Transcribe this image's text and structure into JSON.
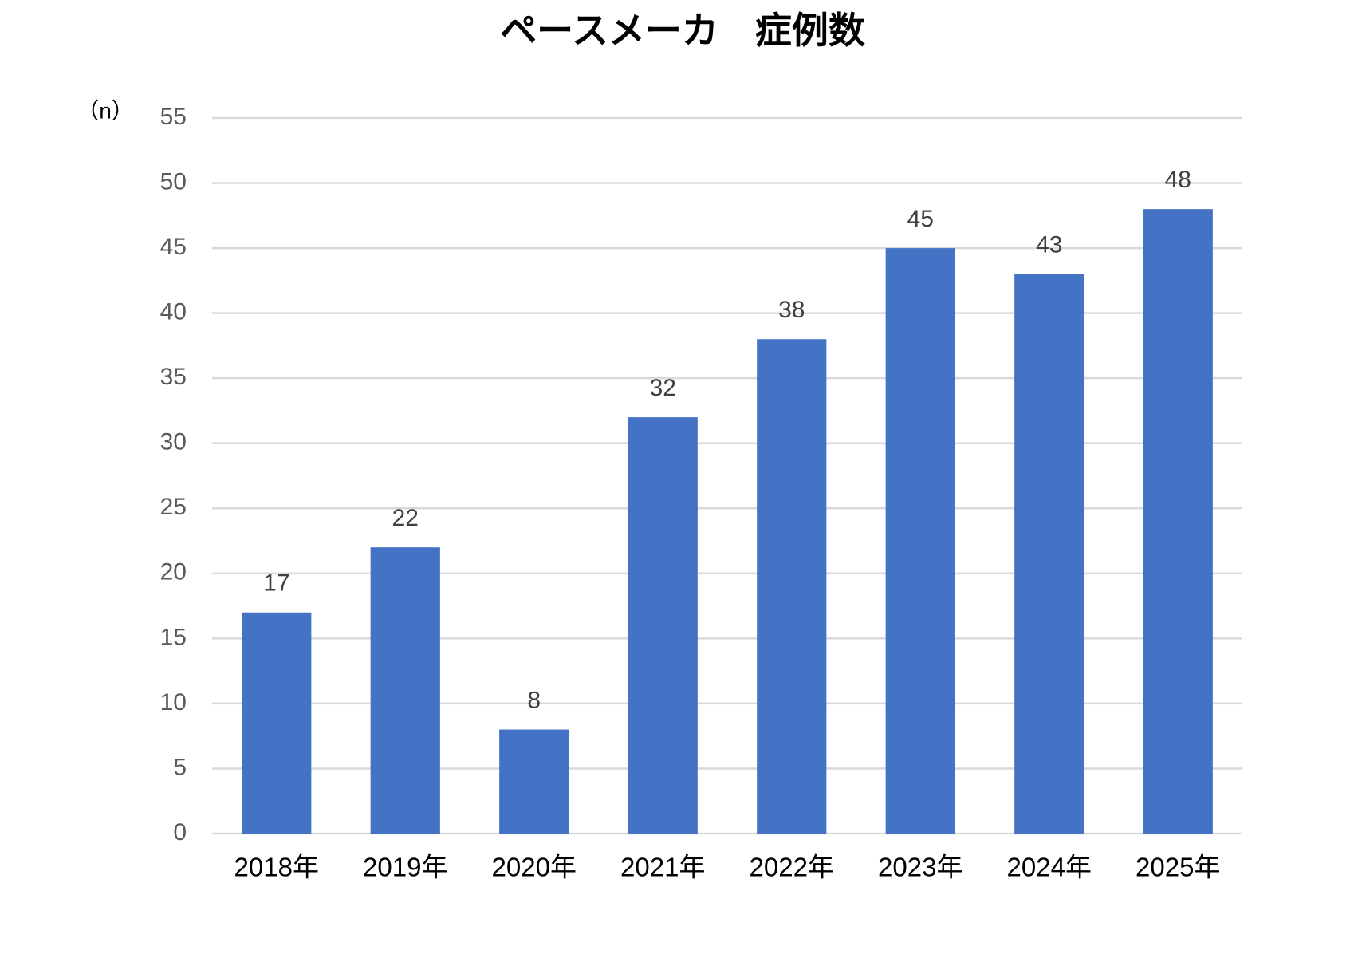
{
  "chart_data": {
    "type": "bar",
    "title": "ペースメーカ　症例数",
    "y_axis_label": "（n）",
    "categories": [
      "2018年",
      "2019年",
      "2020年",
      "2021年",
      "2022年",
      "2023年",
      "2024年",
      "2025年"
    ],
    "values": [
      17,
      22,
      8,
      32,
      38,
      45,
      43,
      48
    ],
    "color": "#4472c4",
    "ylim": [
      0,
      55
    ],
    "yticks": [
      0,
      5,
      10,
      15,
      20,
      25,
      30,
      35,
      40,
      45,
      50,
      55
    ],
    "grid": true,
    "data_labels": true
  }
}
